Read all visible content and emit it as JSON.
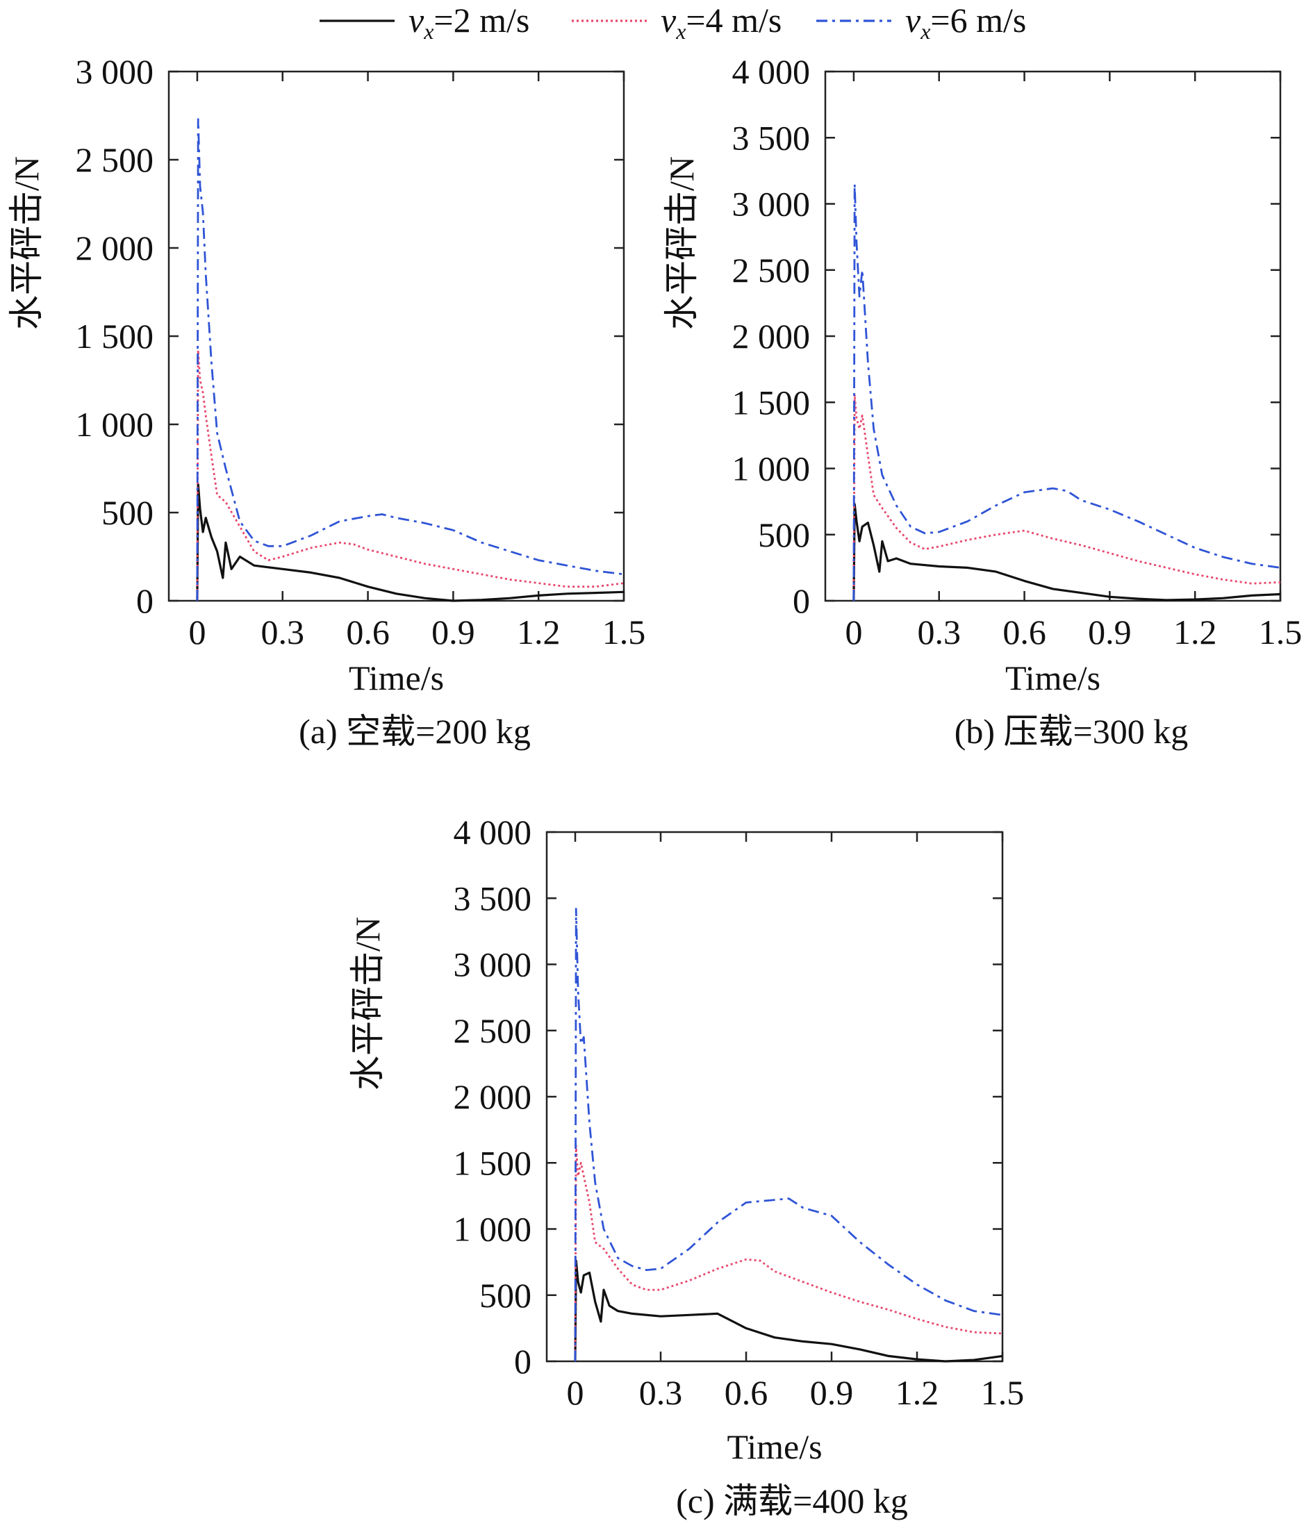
{
  "legend": {
    "var": "v",
    "sub": "x",
    "entries": [
      {
        "text": "=2 m/s",
        "color": "#111111",
        "dash": "solid"
      },
      {
        "text": "=4 m/s",
        "color": "#e8476b",
        "dash": "dotted"
      },
      {
        "text": "=6 m/s",
        "color": "#2f54d6",
        "dash": "dashdot"
      }
    ]
  },
  "chart_data": [
    {
      "type": "line",
      "caption": "(a) 空载=200 kg",
      "xlabel": "Time/s",
      "ylabel": "水平砰击/N",
      "xlim": [
        -0.1,
        1.5
      ],
      "ylim": [
        0,
        3000
      ],
      "xticks": [
        0,
        0.3,
        0.6,
        0.9,
        1.2,
        1.5
      ],
      "xtick_labels": [
        "0",
        "0.3",
        "0.6",
        "0.9",
        "1.2",
        "1.5"
      ],
      "yticks": [
        0,
        500,
        1000,
        1500,
        2000,
        2500,
        3000
      ],
      "ytick_labels": [
        "0",
        "500",
        "1 000",
        "1 500",
        "2 000",
        "2 500",
        "3 000"
      ],
      "series": [
        {
          "name": "vx=2 m/s",
          "x": [
            0,
            0.003,
            0.01,
            0.02,
            0.03,
            0.05,
            0.07,
            0.09,
            0.1,
            0.12,
            0.15,
            0.2,
            0.3,
            0.4,
            0.5,
            0.6,
            0.7,
            0.8,
            0.9,
            1.0,
            1.1,
            1.2,
            1.3,
            1.4,
            1.5
          ],
          "y": [
            0,
            660,
            520,
            390,
            470,
            360,
            280,
            130,
            330,
            180,
            250,
            200,
            180,
            160,
            130,
            80,
            40,
            15,
            0,
            5,
            15,
            30,
            40,
            45,
            50
          ]
        },
        {
          "name": "vx=4 m/s",
          "x": [
            0,
            0.003,
            0.01,
            0.02,
            0.03,
            0.05,
            0.07,
            0.1,
            0.15,
            0.2,
            0.25,
            0.3,
            0.4,
            0.5,
            0.55,
            0.6,
            0.7,
            0.8,
            0.9,
            1.0,
            1.1,
            1.2,
            1.3,
            1.4,
            1.5
          ],
          "y": [
            0,
            1420,
            1250,
            1180,
            1050,
            820,
            600,
            560,
            420,
            280,
            230,
            250,
            300,
            330,
            320,
            290,
            250,
            210,
            180,
            150,
            120,
            100,
            80,
            80,
            100
          ]
        },
        {
          "name": "vx=6 m/s",
          "x": [
            0,
            0.003,
            0.01,
            0.02,
            0.03,
            0.05,
            0.07,
            0.1,
            0.15,
            0.2,
            0.25,
            0.3,
            0.4,
            0.5,
            0.6,
            0.65,
            0.7,
            0.8,
            0.9,
            1.0,
            1.1,
            1.2,
            1.3,
            1.4,
            1.5
          ],
          "y": [
            0,
            2730,
            2350,
            2200,
            1850,
            1350,
            950,
            750,
            450,
            340,
            310,
            310,
            370,
            450,
            480,
            490,
            470,
            440,
            400,
            330,
            280,
            230,
            200,
            170,
            150
          ]
        }
      ]
    },
    {
      "type": "line",
      "caption": "(b) 压载=300 kg",
      "xlabel": "Time/s",
      "ylabel": "水平砰击/N",
      "xlim": [
        -0.1,
        1.5
      ],
      "ylim": [
        0,
        4000
      ],
      "xticks": [
        0,
        0.3,
        0.6,
        0.9,
        1.2,
        1.5
      ],
      "xtick_labels": [
        "0",
        "0.3",
        "0.6",
        "0.9",
        "1.2",
        "1.5"
      ],
      "yticks": [
        0,
        500,
        1000,
        1500,
        2000,
        2500,
        3000,
        3500,
        4000
      ],
      "ytick_labels": [
        "0",
        "500",
        "1 000",
        "1 500",
        "2 000",
        "2 500",
        "3 000",
        "3 500",
        "4 000"
      ],
      "series": [
        {
          "name": "vx=2 m/s",
          "x": [
            0,
            0.003,
            0.01,
            0.02,
            0.03,
            0.05,
            0.07,
            0.09,
            0.1,
            0.12,
            0.15,
            0.2,
            0.3,
            0.4,
            0.5,
            0.6,
            0.7,
            0.8,
            0.9,
            1.0,
            1.1,
            1.2,
            1.3,
            1.4,
            1.5
          ],
          "y": [
            0,
            730,
            600,
            450,
            560,
            590,
            420,
            220,
            450,
            300,
            320,
            280,
            260,
            250,
            220,
            150,
            90,
            60,
            30,
            15,
            5,
            10,
            20,
            40,
            50
          ]
        },
        {
          "name": "vx=4 m/s",
          "x": [
            0,
            0.003,
            0.01,
            0.02,
            0.03,
            0.05,
            0.07,
            0.1,
            0.15,
            0.2,
            0.25,
            0.3,
            0.4,
            0.5,
            0.6,
            0.65,
            0.7,
            0.8,
            0.9,
            1.0,
            1.1,
            1.2,
            1.3,
            1.4,
            1.5
          ],
          "y": [
            0,
            1560,
            1380,
            1300,
            1400,
            1100,
            800,
            700,
            550,
            440,
            390,
            410,
            460,
            500,
            530,
            500,
            470,
            420,
            360,
            300,
            250,
            200,
            160,
            130,
            140
          ]
        },
        {
          "name": "vx=6 m/s",
          "x": [
            0,
            0.003,
            0.01,
            0.02,
            0.03,
            0.05,
            0.07,
            0.1,
            0.15,
            0.2,
            0.25,
            0.3,
            0.4,
            0.5,
            0.6,
            0.7,
            0.75,
            0.8,
            0.9,
            1.0,
            1.1,
            1.2,
            1.3,
            1.4,
            1.5
          ],
          "y": [
            0,
            3150,
            2700,
            2300,
            2500,
            1800,
            1300,
            950,
            720,
            560,
            510,
            520,
            600,
            720,
            820,
            850,
            830,
            760,
            690,
            600,
            500,
            400,
            330,
            280,
            250
          ]
        }
      ]
    },
    {
      "type": "line",
      "caption": "(c) 满载=400 kg",
      "xlabel": "Time/s",
      "ylabel": "水平砰击/N",
      "xlim": [
        -0.1,
        1.5
      ],
      "ylim": [
        0,
        4000
      ],
      "xticks": [
        0,
        0.3,
        0.6,
        0.9,
        1.2,
        1.5
      ],
      "xtick_labels": [
        "0",
        "0.3",
        "0.6",
        "0.9",
        "1.2",
        "1.5"
      ],
      "yticks": [
        0,
        500,
        1000,
        1500,
        2000,
        2500,
        3000,
        3500,
        4000
      ],
      "ytick_labels": [
        "0",
        "500",
        "1 000",
        "1 500",
        "2 000",
        "2 500",
        "3 000",
        "3 500",
        "4 000"
      ],
      "series": [
        {
          "name": "vx=2 m/s",
          "x": [
            0,
            0.003,
            0.01,
            0.02,
            0.03,
            0.05,
            0.07,
            0.09,
            0.1,
            0.12,
            0.15,
            0.2,
            0.3,
            0.4,
            0.5,
            0.6,
            0.7,
            0.8,
            0.9,
            1.0,
            1.1,
            1.2,
            1.3,
            1.4,
            1.5
          ],
          "y": [
            0,
            760,
            600,
            520,
            650,
            670,
            450,
            300,
            540,
            420,
            380,
            360,
            340,
            350,
            360,
            250,
            180,
            150,
            130,
            90,
            40,
            15,
            0,
            10,
            40
          ]
        },
        {
          "name": "vx=4 m/s",
          "x": [
            0,
            0.003,
            0.01,
            0.02,
            0.03,
            0.05,
            0.07,
            0.1,
            0.15,
            0.2,
            0.25,
            0.3,
            0.4,
            0.5,
            0.6,
            0.65,
            0.7,
            0.8,
            0.9,
            1.0,
            1.1,
            1.2,
            1.3,
            1.4,
            1.5
          ],
          "y": [
            0,
            1630,
            1400,
            1500,
            1400,
            1200,
            900,
            850,
            700,
            580,
            540,
            540,
            610,
            700,
            770,
            760,
            680,
            600,
            520,
            450,
            390,
            320,
            260,
            220,
            210
          ]
        },
        {
          "name": "vx=6 m/s",
          "x": [
            0,
            0.003,
            0.01,
            0.02,
            0.03,
            0.05,
            0.07,
            0.1,
            0.15,
            0.2,
            0.25,
            0.3,
            0.4,
            0.5,
            0.6,
            0.7,
            0.75,
            0.8,
            0.9,
            1.0,
            1.1,
            1.2,
            1.3,
            1.4,
            1.5
          ],
          "y": [
            0,
            3420,
            2800,
            2400,
            2450,
            1800,
            1350,
            1000,
            780,
            720,
            690,
            700,
            850,
            1050,
            1200,
            1220,
            1230,
            1160,
            1100,
            900,
            730,
            580,
            460,
            380,
            350
          ]
        }
      ]
    }
  ]
}
